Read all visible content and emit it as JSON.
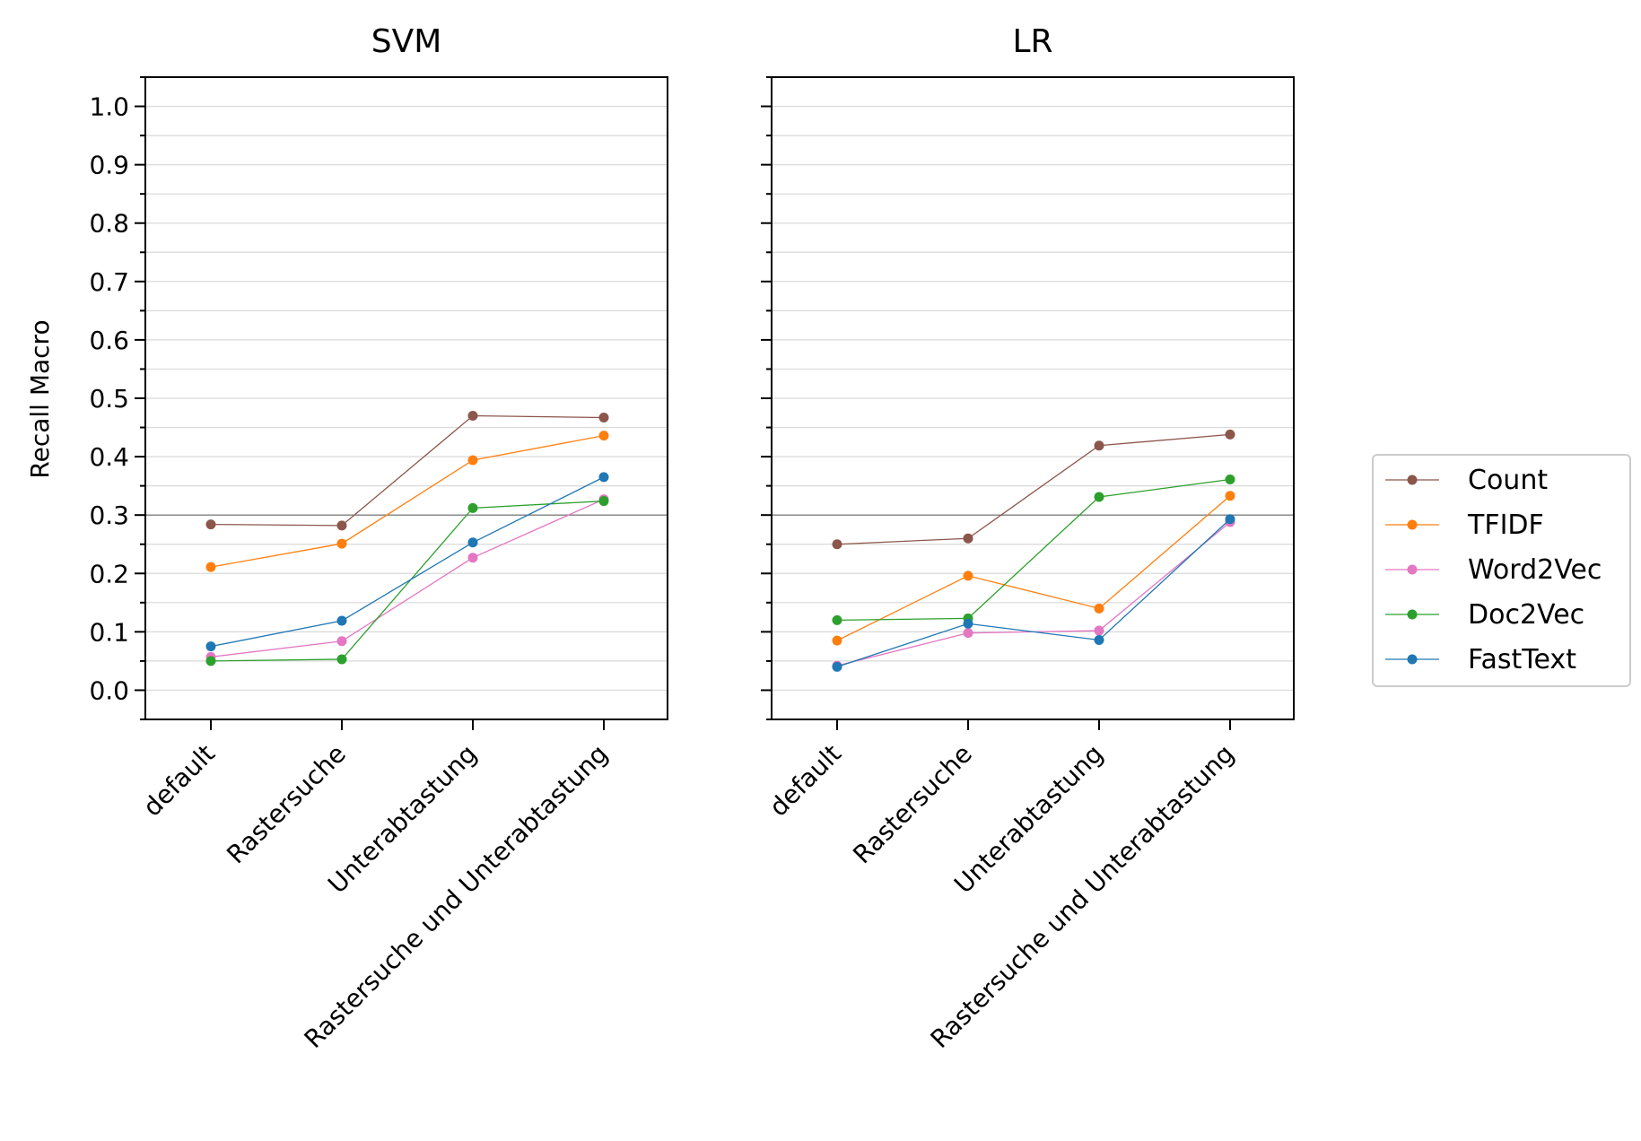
{
  "chart_data": {
    "type": "line",
    "ylabel": "Recall Macro",
    "ylim": [
      -0.05,
      1.05
    ],
    "yticks": [
      "0.0",
      "0.1",
      "0.2",
      "0.3",
      "0.4",
      "0.5",
      "0.6",
      "0.7",
      "0.8",
      "0.9",
      "1.0"
    ],
    "reference_line": 0.3,
    "grid": "horizontal",
    "legend_position": "right",
    "categories": [
      "default",
      "Rastersuche",
      "Unterabtastung",
      "Rastersuche und Unterabtastung"
    ],
    "legend": [
      {
        "name": "Count",
        "color": "#8c564b"
      },
      {
        "name": "TFIDF",
        "color": "#ff7f0e"
      },
      {
        "name": "Word2Vec",
        "color": "#e377c2"
      },
      {
        "name": "Doc2Vec",
        "color": "#2ca02c"
      },
      {
        "name": "FastText",
        "color": "#1f77b4"
      }
    ],
    "panels": [
      {
        "title": "SVM",
        "series": [
          {
            "name": "Count",
            "color": "#8c564b",
            "values": [
              0.284,
              0.282,
              0.47,
              0.467
            ]
          },
          {
            "name": "TFIDF",
            "color": "#ff7f0e",
            "values": [
              0.211,
              0.251,
              0.394,
              0.436
            ]
          },
          {
            "name": "Word2Vec",
            "color": "#e377c2",
            "values": [
              0.057,
              0.084,
              0.227,
              0.327
            ]
          },
          {
            "name": "Doc2Vec",
            "color": "#2ca02c",
            "values": [
              0.05,
              0.053,
              0.312,
              0.324
            ]
          },
          {
            "name": "FastText",
            "color": "#1f77b4",
            "values": [
              0.075,
              0.119,
              0.253,
              0.365
            ]
          }
        ]
      },
      {
        "title": "LR",
        "series": [
          {
            "name": "Count",
            "color": "#8c564b",
            "values": [
              0.25,
              0.26,
              0.419,
              0.438
            ]
          },
          {
            "name": "TFIDF",
            "color": "#ff7f0e",
            "values": [
              0.085,
              0.196,
              0.14,
              0.333
            ]
          },
          {
            "name": "Word2Vec",
            "color": "#e377c2",
            "values": [
              0.042,
              0.098,
              0.102,
              0.288
            ]
          },
          {
            "name": "Doc2Vec",
            "color": "#2ca02c",
            "values": [
              0.12,
              0.123,
              0.331,
              0.361
            ]
          },
          {
            "name": "FastText",
            "color": "#1f77b4",
            "values": [
              0.04,
              0.114,
              0.086,
              0.293
            ]
          }
        ]
      }
    ]
  }
}
